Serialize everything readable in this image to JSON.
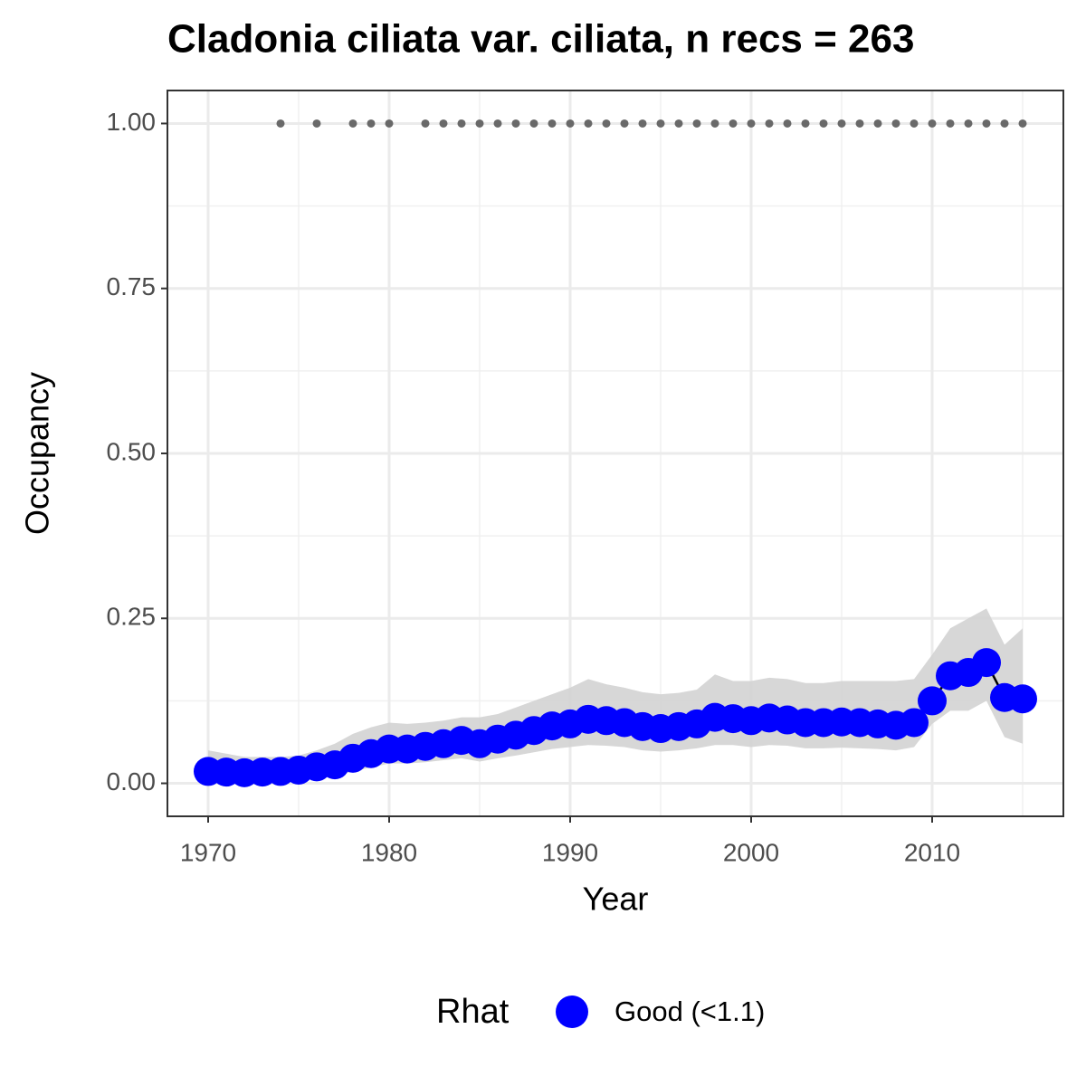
{
  "chart_data": {
    "type": "line",
    "title": "Cladonia ciliata var. ciliata, n recs = 263",
    "x_label": "Year",
    "y_label": "Occupancy",
    "x": [
      1970,
      1971,
      1972,
      1973,
      1974,
      1975,
      1976,
      1977,
      1978,
      1979,
      1980,
      1981,
      1982,
      1983,
      1984,
      1985,
      1986,
      1987,
      1988,
      1989,
      1990,
      1991,
      1992,
      1993,
      1994,
      1995,
      1996,
      1997,
      1998,
      1999,
      2000,
      2001,
      2002,
      2003,
      2004,
      2005,
      2006,
      2007,
      2008,
      2009,
      2010,
      2011,
      2012,
      2013,
      2014,
      2015
    ],
    "series": [
      {
        "name": "Good (<1.1)",
        "color": "#0000ff",
        "line_color": "#000000",
        "values": [
          0.018,
          0.017,
          0.016,
          0.017,
          0.018,
          0.02,
          0.025,
          0.028,
          0.038,
          0.045,
          0.052,
          0.052,
          0.056,
          0.06,
          0.065,
          0.06,
          0.067,
          0.073,
          0.08,
          0.087,
          0.09,
          0.097,
          0.095,
          0.092,
          0.086,
          0.083,
          0.086,
          0.09,
          0.1,
          0.098,
          0.095,
          0.099,
          0.096,
          0.092,
          0.092,
          0.093,
          0.092,
          0.09,
          0.088,
          0.092,
          0.125,
          0.163,
          0.168,
          0.183,
          0.13,
          0.128
        ]
      }
    ],
    "ribbon": {
      "color": "#d3d3d3",
      "lower": [
        0.0,
        0.002,
        0.003,
        0.003,
        0.004,
        0.005,
        0.008,
        0.01,
        0.018,
        0.024,
        0.03,
        0.03,
        0.032,
        0.035,
        0.038,
        0.033,
        0.038,
        0.042,
        0.047,
        0.052,
        0.055,
        0.058,
        0.057,
        0.055,
        0.05,
        0.048,
        0.05,
        0.053,
        0.058,
        0.058,
        0.055,
        0.058,
        0.057,
        0.053,
        0.053,
        0.054,
        0.053,
        0.052,
        0.05,
        0.055,
        0.09,
        0.11,
        0.11,
        0.125,
        0.07,
        0.06
      ],
      "upper": [
        0.05,
        0.045,
        0.04,
        0.04,
        0.04,
        0.042,
        0.05,
        0.06,
        0.075,
        0.085,
        0.092,
        0.09,
        0.092,
        0.095,
        0.1,
        0.1,
        0.105,
        0.115,
        0.125,
        0.135,
        0.145,
        0.158,
        0.15,
        0.145,
        0.138,
        0.135,
        0.137,
        0.142,
        0.165,
        0.155,
        0.155,
        0.16,
        0.158,
        0.152,
        0.152,
        0.155,
        0.155,
        0.155,
        0.155,
        0.158,
        0.195,
        0.235,
        0.25,
        0.265,
        0.21,
        0.235
      ]
    },
    "records": {
      "color": "#696969",
      "x": [
        1974,
        1976,
        1978,
        1979,
        1980,
        1982,
        1983,
        1984,
        1985,
        1986,
        1987,
        1988,
        1989,
        1990,
        1991,
        1992,
        1993,
        1994,
        1995,
        1996,
        1997,
        1998,
        1999,
        2000,
        2001,
        2002,
        2003,
        2004,
        2005,
        2006,
        2007,
        2008,
        2009,
        2010,
        2011,
        2012,
        2013,
        2014,
        2015
      ],
      "values": [
        1,
        1,
        1,
        1,
        1,
        1,
        1,
        1,
        1,
        1,
        1,
        1,
        1,
        1,
        1,
        1,
        1,
        1,
        1,
        1,
        1,
        1,
        1,
        1,
        1,
        1,
        1,
        1,
        1,
        1,
        1,
        1,
        1,
        1,
        1,
        1,
        1,
        1,
        1
      ]
    },
    "xlim": [
      1967.75,
      2017.25
    ],
    "ylim": [
      -0.05,
      1.05
    ],
    "xticks": [
      1970,
      1980,
      1990,
      2000,
      2010
    ],
    "yticks": [
      {
        "value": 0,
        "label": "0.00"
      },
      {
        "value": 0.25,
        "label": "0.25"
      },
      {
        "value": 0.5,
        "label": "0.50"
      },
      {
        "value": 0.75,
        "label": "0.75"
      },
      {
        "value": 1,
        "label": "1.00"
      }
    ],
    "x_minor_grid": [
      1975,
      1985,
      1995,
      2005,
      2015
    ],
    "y_minor_grid": [
      0.125,
      0.375,
      0.625,
      0.875
    ],
    "grid": true,
    "legend_title": "Rhat",
    "legend_position": "bottom"
  }
}
